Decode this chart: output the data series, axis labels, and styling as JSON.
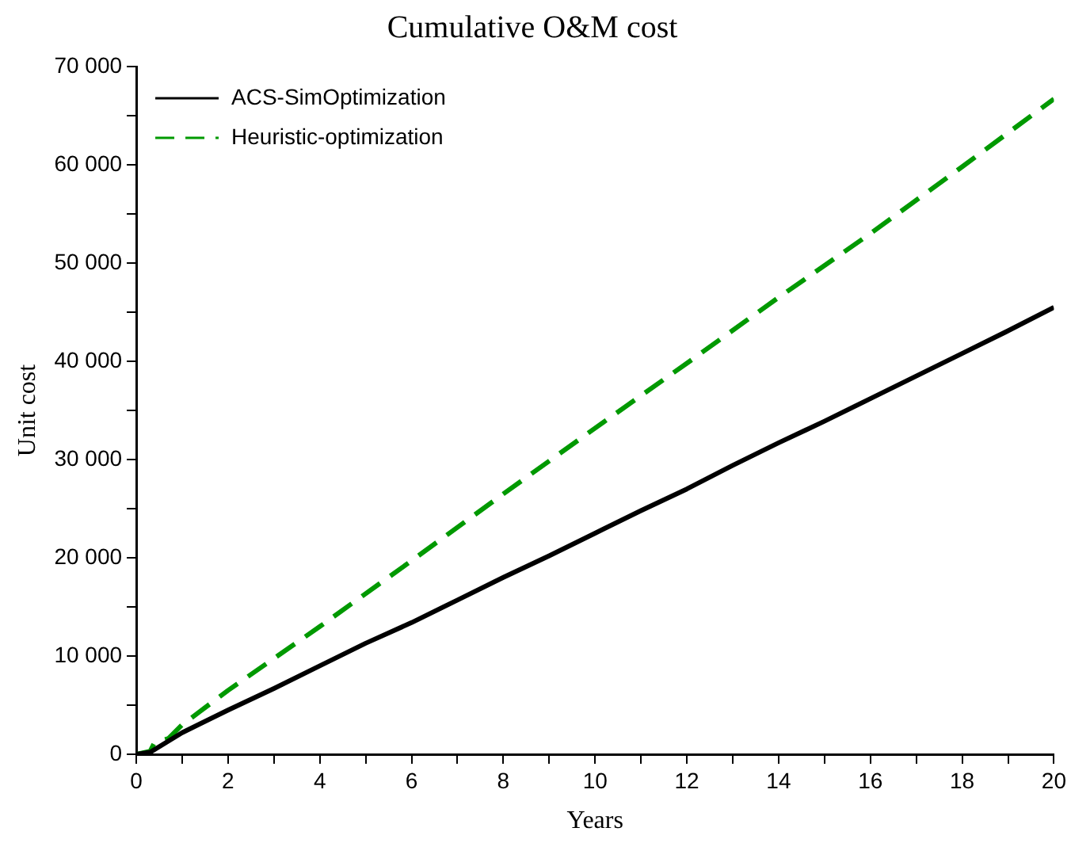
{
  "chart_data": {
    "type": "line",
    "title": "Cumulative O&M cost",
    "xlabel": "Years",
    "ylabel": "Unit cost",
    "xlim": [
      0,
      20
    ],
    "xticks": [
      0,
      {
        "value": 1,
        "label": null
      },
      2,
      {
        "value": 3,
        "label": null
      },
      4,
      {
        "value": 5,
        "label": null
      },
      6,
      {
        "value": 7,
        "label": null
      },
      8,
      {
        "value": 9,
        "label": null
      },
      10,
      {
        "value": 11,
        "label": null
      },
      12,
      {
        "value": 13,
        "label": null
      },
      14,
      {
        "value": 15,
        "label": null
      },
      16,
      {
        "value": 17,
        "label": null
      },
      18,
      {
        "value": 19,
        "label": null
      },
      20
    ],
    "ylim": [
      0,
      70000
    ],
    "yticks": [
      0,
      {
        "value": 5000,
        "label": null
      },
      {
        "value": 10000,
        "label": "10 000"
      },
      {
        "value": 15000,
        "label": null
      },
      {
        "value": 20000,
        "label": "20 000"
      },
      {
        "value": 25000,
        "label": null
      },
      {
        "value": 30000,
        "label": "30 000"
      },
      {
        "value": 35000,
        "label": null
      },
      {
        "value": 40000,
        "label": "40 000"
      },
      {
        "value": 45000,
        "label": null
      },
      {
        "value": 50000,
        "label": "50 000"
      },
      {
        "value": 55000,
        "label": null
      },
      {
        "value": 60000,
        "label": "60 000"
      },
      {
        "value": 65000,
        "label": null
      },
      {
        "value": 70000,
        "label": "70 000"
      }
    ],
    "grid": false,
    "legend": "top left",
    "marker": "none",
    "series": [
      {
        "name": "ACS-SimOptimization",
        "color": "#000000",
        "line_style": "solid",
        "x": [
          0,
          0.3,
          1,
          2,
          3,
          4,
          5,
          6,
          7,
          8,
          9,
          10,
          11,
          12,
          13,
          14,
          15,
          16,
          17,
          18,
          19,
          20
        ],
        "values": [
          0,
          200,
          2200,
          4500,
          6700,
          9000,
          11300,
          13400,
          15700,
          18000,
          20200,
          22500,
          24800,
          27000,
          29400,
          31700,
          33900,
          36200,
          38500,
          40800,
          43100,
          45500
        ]
      },
      {
        "name": "Heuristic-optimization",
        "color": "#009900",
        "line_style": "dashed",
        "x": [
          0,
          0.3,
          0.4,
          0.7,
          1,
          2,
          4,
          6,
          8,
          10,
          12,
          14,
          16,
          18,
          20
        ],
        "values": [
          0,
          300,
          1200,
          1600,
          3000,
          6500,
          13000,
          19700,
          26500,
          33200,
          39800,
          46500,
          53000,
          59800,
          66700
        ]
      }
    ]
  }
}
